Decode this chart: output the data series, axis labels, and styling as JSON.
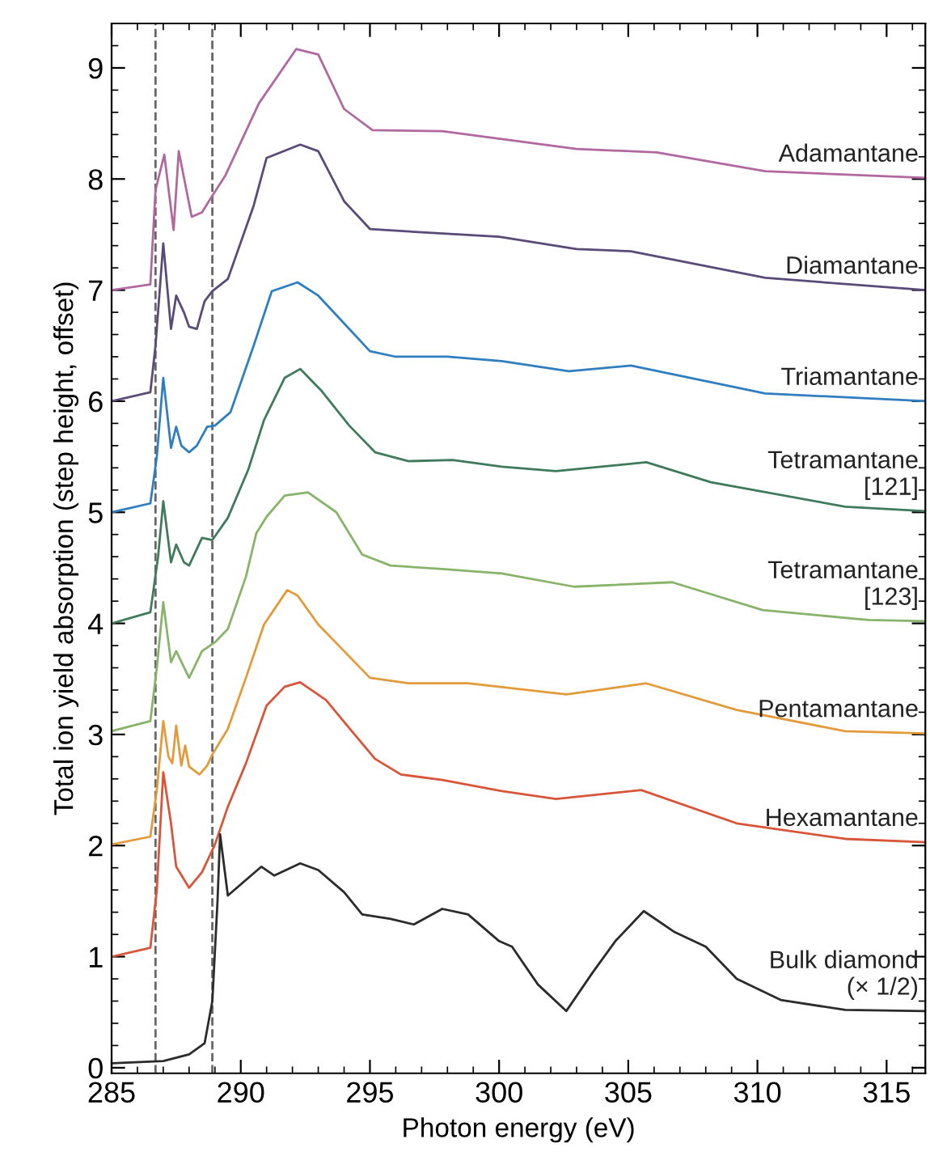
{
  "chart_data": {
    "type": "line",
    "xlabel": "Photon energy (eV)",
    "ylabel": "Total ion yield absorption (step height, offset)",
    "xlim": [
      285,
      316.5
    ],
    "ylim": [
      -0.05,
      9.4
    ],
    "xticks": [
      285,
      290,
      295,
      300,
      305,
      310,
      315
    ],
    "yticks": [
      0,
      1,
      2,
      3,
      4,
      5,
      6,
      7,
      8,
      9
    ],
    "grid": false,
    "legend": false,
    "marker": "none",
    "line_style": "solid",
    "ref_lines": [
      {
        "axis": "x",
        "value": 286.7,
        "color": "#666666",
        "line_style": "dashed"
      },
      {
        "axis": "x",
        "value": 288.9,
        "color": "#666666",
        "line_style": "dashed"
      }
    ],
    "series": [
      {
        "name": "Adamantane",
        "color": "#b0689e",
        "x": [
          285,
          286.5,
          286.7,
          287.04,
          287.4,
          287.6,
          288.1,
          288.5,
          288.9,
          289.4,
          290.7,
          292.15,
          293.0,
          294.0,
          295.1,
          297.8,
          300.1,
          303.0,
          306.1,
          310.3,
          316.5
        ],
        "values": [
          7.0,
          7.05,
          7.9,
          8.22,
          7.54,
          8.25,
          7.66,
          7.7,
          7.85,
          8.03,
          8.68,
          9.17,
          9.12,
          8.63,
          8.44,
          8.43,
          8.36,
          8.27,
          8.24,
          8.07,
          8.01
        ]
      },
      {
        "name": "Diamantane",
        "color": "#5a4a78",
        "x": [
          285,
          286.5,
          286.7,
          287.0,
          287.3,
          287.5,
          287.8,
          288.0,
          288.3,
          288.6,
          288.9,
          289.5,
          290.5,
          291.0,
          292.3,
          293.0,
          294.0,
          295.0,
          297.0,
          300.0,
          303.0,
          305.1,
          310.3,
          316.5
        ],
        "values": [
          6.0,
          6.08,
          6.5,
          7.42,
          6.65,
          6.95,
          6.8,
          6.67,
          6.65,
          6.9,
          6.99,
          7.1,
          7.76,
          8.19,
          8.31,
          8.25,
          7.8,
          7.55,
          7.52,
          7.48,
          7.37,
          7.35,
          7.11,
          7.0
        ]
      },
      {
        "name": "Triamantane",
        "color": "#2f7fc0",
        "x": [
          285,
          286.5,
          286.75,
          287.0,
          287.3,
          287.5,
          287.7,
          288.0,
          288.3,
          288.7,
          289.0,
          289.6,
          290.5,
          291.2,
          292.2,
          293.0,
          294.0,
          295.0,
          296.0,
          298.0,
          300.1,
          302.7,
          305.1,
          310.3,
          316.5
        ],
        "values": [
          5.0,
          5.08,
          5.5,
          6.21,
          5.58,
          5.77,
          5.6,
          5.54,
          5.6,
          5.77,
          5.78,
          5.9,
          6.5,
          6.99,
          7.07,
          6.95,
          6.7,
          6.45,
          6.4,
          6.4,
          6.36,
          6.27,
          6.32,
          6.07,
          6.0
        ]
      },
      {
        "name": "Tetramantane\n[121]",
        "color": "#3f7a5a",
        "x": [
          285,
          286.5,
          286.8,
          287.0,
          287.3,
          287.5,
          287.8,
          288.0,
          288.5,
          288.9,
          289.5,
          290.3,
          290.9,
          291.7,
          292.3,
          293.1,
          294.2,
          295.2,
          296.5,
          298.2,
          300.1,
          302.2,
          305.7,
          308.2,
          313.4,
          316.5
        ],
        "values": [
          4.0,
          4.1,
          4.6,
          5.1,
          4.55,
          4.71,
          4.55,
          4.52,
          4.77,
          4.75,
          4.95,
          5.39,
          5.83,
          6.21,
          6.29,
          6.1,
          5.78,
          5.54,
          5.46,
          5.47,
          5.41,
          5.37,
          5.45,
          5.27,
          5.05,
          5.01
        ]
      },
      {
        "name": "Tetramantane\n[123]",
        "color": "#88b46a",
        "x": [
          285,
          286.5,
          286.75,
          287.0,
          287.3,
          287.5,
          288.0,
          288.5,
          289.0,
          289.5,
          290.2,
          290.6,
          291.0,
          291.7,
          292.6,
          293.7,
          294.7,
          295.8,
          297.8,
          300.1,
          302.9,
          306.7,
          310.2,
          314.3,
          316.5
        ],
        "values": [
          3.03,
          3.12,
          3.6,
          4.19,
          3.65,
          3.75,
          3.51,
          3.75,
          3.83,
          3.95,
          4.42,
          4.81,
          4.96,
          5.15,
          5.18,
          5.0,
          4.62,
          4.52,
          4.49,
          4.45,
          4.33,
          4.37,
          4.12,
          4.03,
          4.02
        ]
      },
      {
        "name": "Pentamantane",
        "color": "#e39a3a",
        "x": [
          285,
          286.5,
          286.75,
          287.0,
          287.2,
          287.35,
          287.5,
          287.7,
          287.85,
          288.0,
          288.4,
          288.7,
          288.9,
          289.5,
          290.2,
          290.9,
          291.8,
          292.2,
          293.0,
          294.0,
          295.0,
          296.5,
          298.8,
          302.6,
          305.7,
          309.2,
          313.4,
          316.5
        ],
        "values": [
          2.01,
          2.08,
          2.5,
          3.12,
          2.8,
          2.74,
          3.08,
          2.72,
          2.9,
          2.71,
          2.64,
          2.72,
          2.82,
          3.05,
          3.51,
          3.99,
          4.3,
          4.25,
          3.99,
          3.75,
          3.51,
          3.46,
          3.46,
          3.36,
          3.46,
          3.22,
          3.03,
          3.01
        ]
      },
      {
        "name": "Hexamantane",
        "color": "#d8553a",
        "x": [
          285,
          286.5,
          286.75,
          287.0,
          287.3,
          287.5,
          288.0,
          288.5,
          289.0,
          289.5,
          290.2,
          291.0,
          291.7,
          292.3,
          293.3,
          294.3,
          295.2,
          296.2,
          297.8,
          300.1,
          302.2,
          305.5,
          309.2,
          313.4,
          316.5
        ],
        "values": [
          1.0,
          1.08,
          1.6,
          2.66,
          2.2,
          1.81,
          1.62,
          1.76,
          2.01,
          2.35,
          2.74,
          3.26,
          3.43,
          3.47,
          3.31,
          3.03,
          2.78,
          2.64,
          2.59,
          2.49,
          2.42,
          2.5,
          2.2,
          2.06,
          2.03
        ]
      },
      {
        "name": "Bulk diamond\n(× 1/2)",
        "color": "#2b2b2b",
        "x": [
          285,
          287,
          288,
          288.6,
          288.9,
          289.1,
          289.2,
          289.5,
          290.0,
          290.8,
          291.3,
          292.3,
          293.0,
          294.0,
          294.7,
          295.8,
          296.7,
          297.8,
          298.8,
          300.0,
          300.5,
          301.5,
          302.6,
          303.6,
          304.5,
          305.6,
          306.8,
          308.0,
          309.2,
          310.9,
          313.4,
          316.5
        ],
        "values": [
          0.04,
          0.06,
          0.12,
          0.22,
          0.6,
          1.5,
          2.1,
          1.55,
          1.65,
          1.81,
          1.73,
          1.84,
          1.78,
          1.58,
          1.38,
          1.34,
          1.29,
          1.43,
          1.38,
          1.14,
          1.09,
          0.75,
          0.51,
          0.85,
          1.14,
          1.41,
          1.22,
          1.09,
          0.8,
          0.61,
          0.52,
          0.51
        ]
      }
    ]
  }
}
